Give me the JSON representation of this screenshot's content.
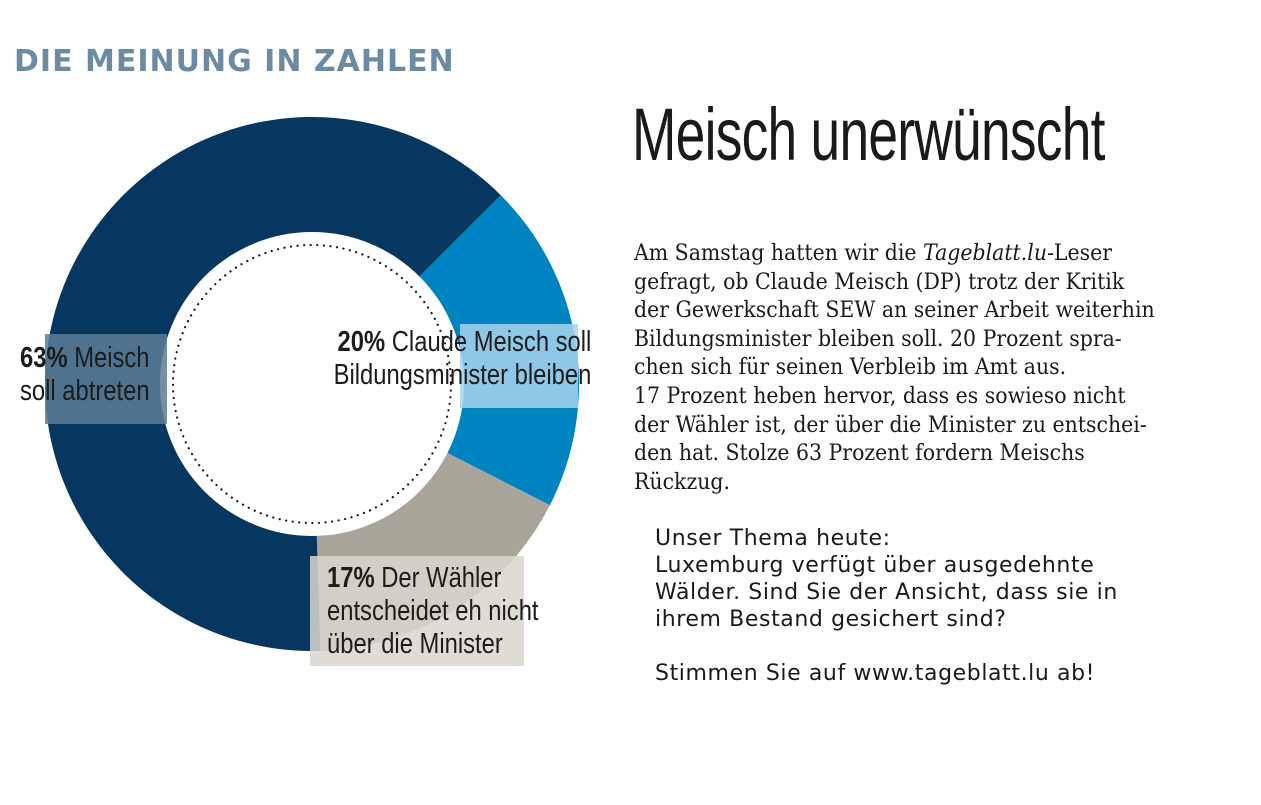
{
  "kicker": "DIE MEINUNG IN ZAHLEN",
  "headline": "Meisch unerwünscht",
  "body": {
    "line1_pre": "Am Samstag hatten wir die ",
    "line1_em": "Tageblatt.lu",
    "line1_post": "-Leser",
    "lines": [
      "gefragt, ob Claude Meisch (DP) trotz der Kritik",
      "der Gewerkschaft SEW an seiner Arbeit weiterhin",
      "Bildungsminister bleiben soll. 20 Prozent spra-",
      "chen sich für seinen Verbleib im Amt aus.",
      "17 Prozent heben hervor, dass es sowieso nicht",
      "der Wähler ist, der über die Minister zu entschei-",
      "den hat. Stolze 63 Prozent fordern Meischs",
      "Rückzug."
    ]
  },
  "cta": {
    "lines": [
      "Unser Thema heute:",
      "Luxemburg verfügt über ausgedehnte",
      "Wälder. Sind Sie der Ansicht, dass sie in",
      "ihrem Bestand gesichert sind?"
    ],
    "vote": "Stimmen Sie auf www.tageblatt.lu ab!"
  },
  "chart_data": {
    "type": "pie",
    "donut": true,
    "slices": [
      {
        "pct_label": "20%",
        "label_lines": [
          "Claude Meisch soll",
          "Bildungsminister bleiben"
        ],
        "value": 20,
        "color": "#0083c1"
      },
      {
        "pct_label": "17%",
        "label_lines": [
          "Der Wähler",
          "entscheidet eh nicht",
          "über die Minister"
        ],
        "value": 17,
        "color": "#a9a59b"
      },
      {
        "pct_label": "63%",
        "label_lines": [
          "Meisch",
          "soll abtreten"
        ],
        "value": 63,
        "color": "#053760"
      }
    ]
  }
}
